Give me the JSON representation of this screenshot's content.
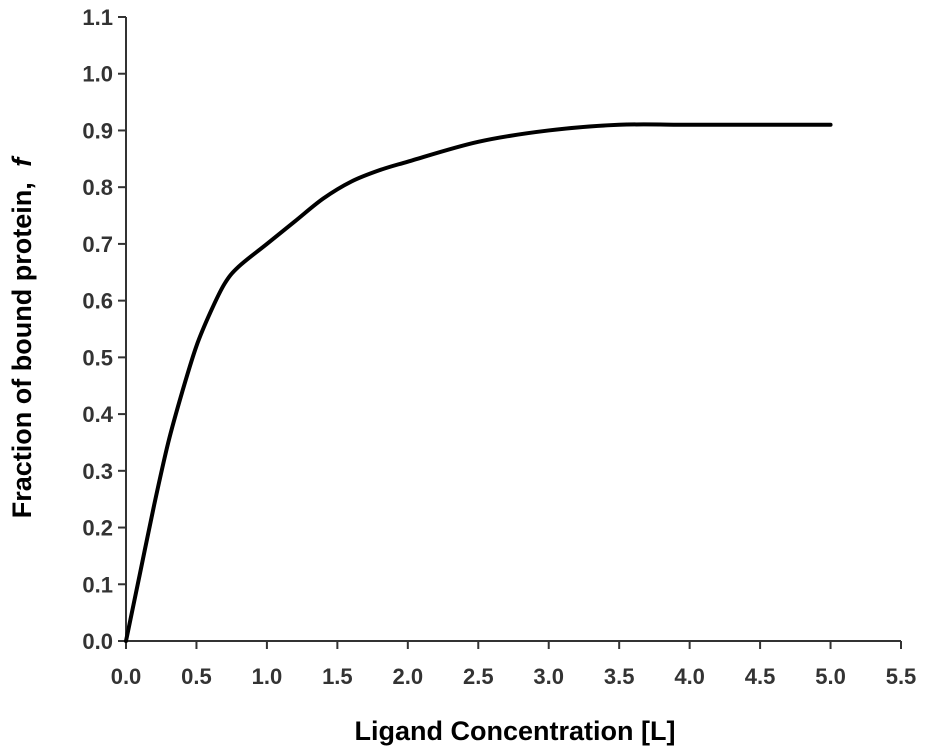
{
  "chart_data": {
    "type": "line",
    "title": "",
    "xlabel": "Ligand Concentration [L]",
    "ylabel_main": "Fraction of bound protein,",
    "ylabel_symbol": "f",
    "xlim": [
      0.0,
      5.5
    ],
    "ylim": [
      0.0,
      1.1
    ],
    "x_ticks": [
      "0.0",
      "0.5",
      "1.0",
      "1.5",
      "2.0",
      "2.5",
      "3.0",
      "3.5",
      "4.0",
      "4.5",
      "5.0",
      "5.5"
    ],
    "y_ticks": [
      "0.0",
      "0.1",
      "0.2",
      "0.3",
      "0.4",
      "0.5",
      "0.6",
      "0.7",
      "0.8",
      "0.9",
      "1.0",
      "1.1"
    ],
    "grid": false,
    "legend": "none",
    "series": [
      {
        "color": "#000000",
        "x": [
          0.0,
          0.1,
          0.2,
          0.3,
          0.4,
          0.5,
          0.6,
          0.7,
          0.8,
          1.0,
          1.2,
          1.4,
          1.6,
          1.8,
          2.0,
          2.5,
          3.0,
          3.5,
          4.0,
          4.5,
          5.0
        ],
        "y": [
          0.0,
          0.12,
          0.24,
          0.35,
          0.44,
          0.52,
          0.58,
          0.63,
          0.66,
          0.7,
          0.74,
          0.78,
          0.81,
          0.83,
          0.845,
          0.88,
          0.9,
          0.91,
          0.91,
          0.91,
          0.91
        ]
      }
    ]
  }
}
